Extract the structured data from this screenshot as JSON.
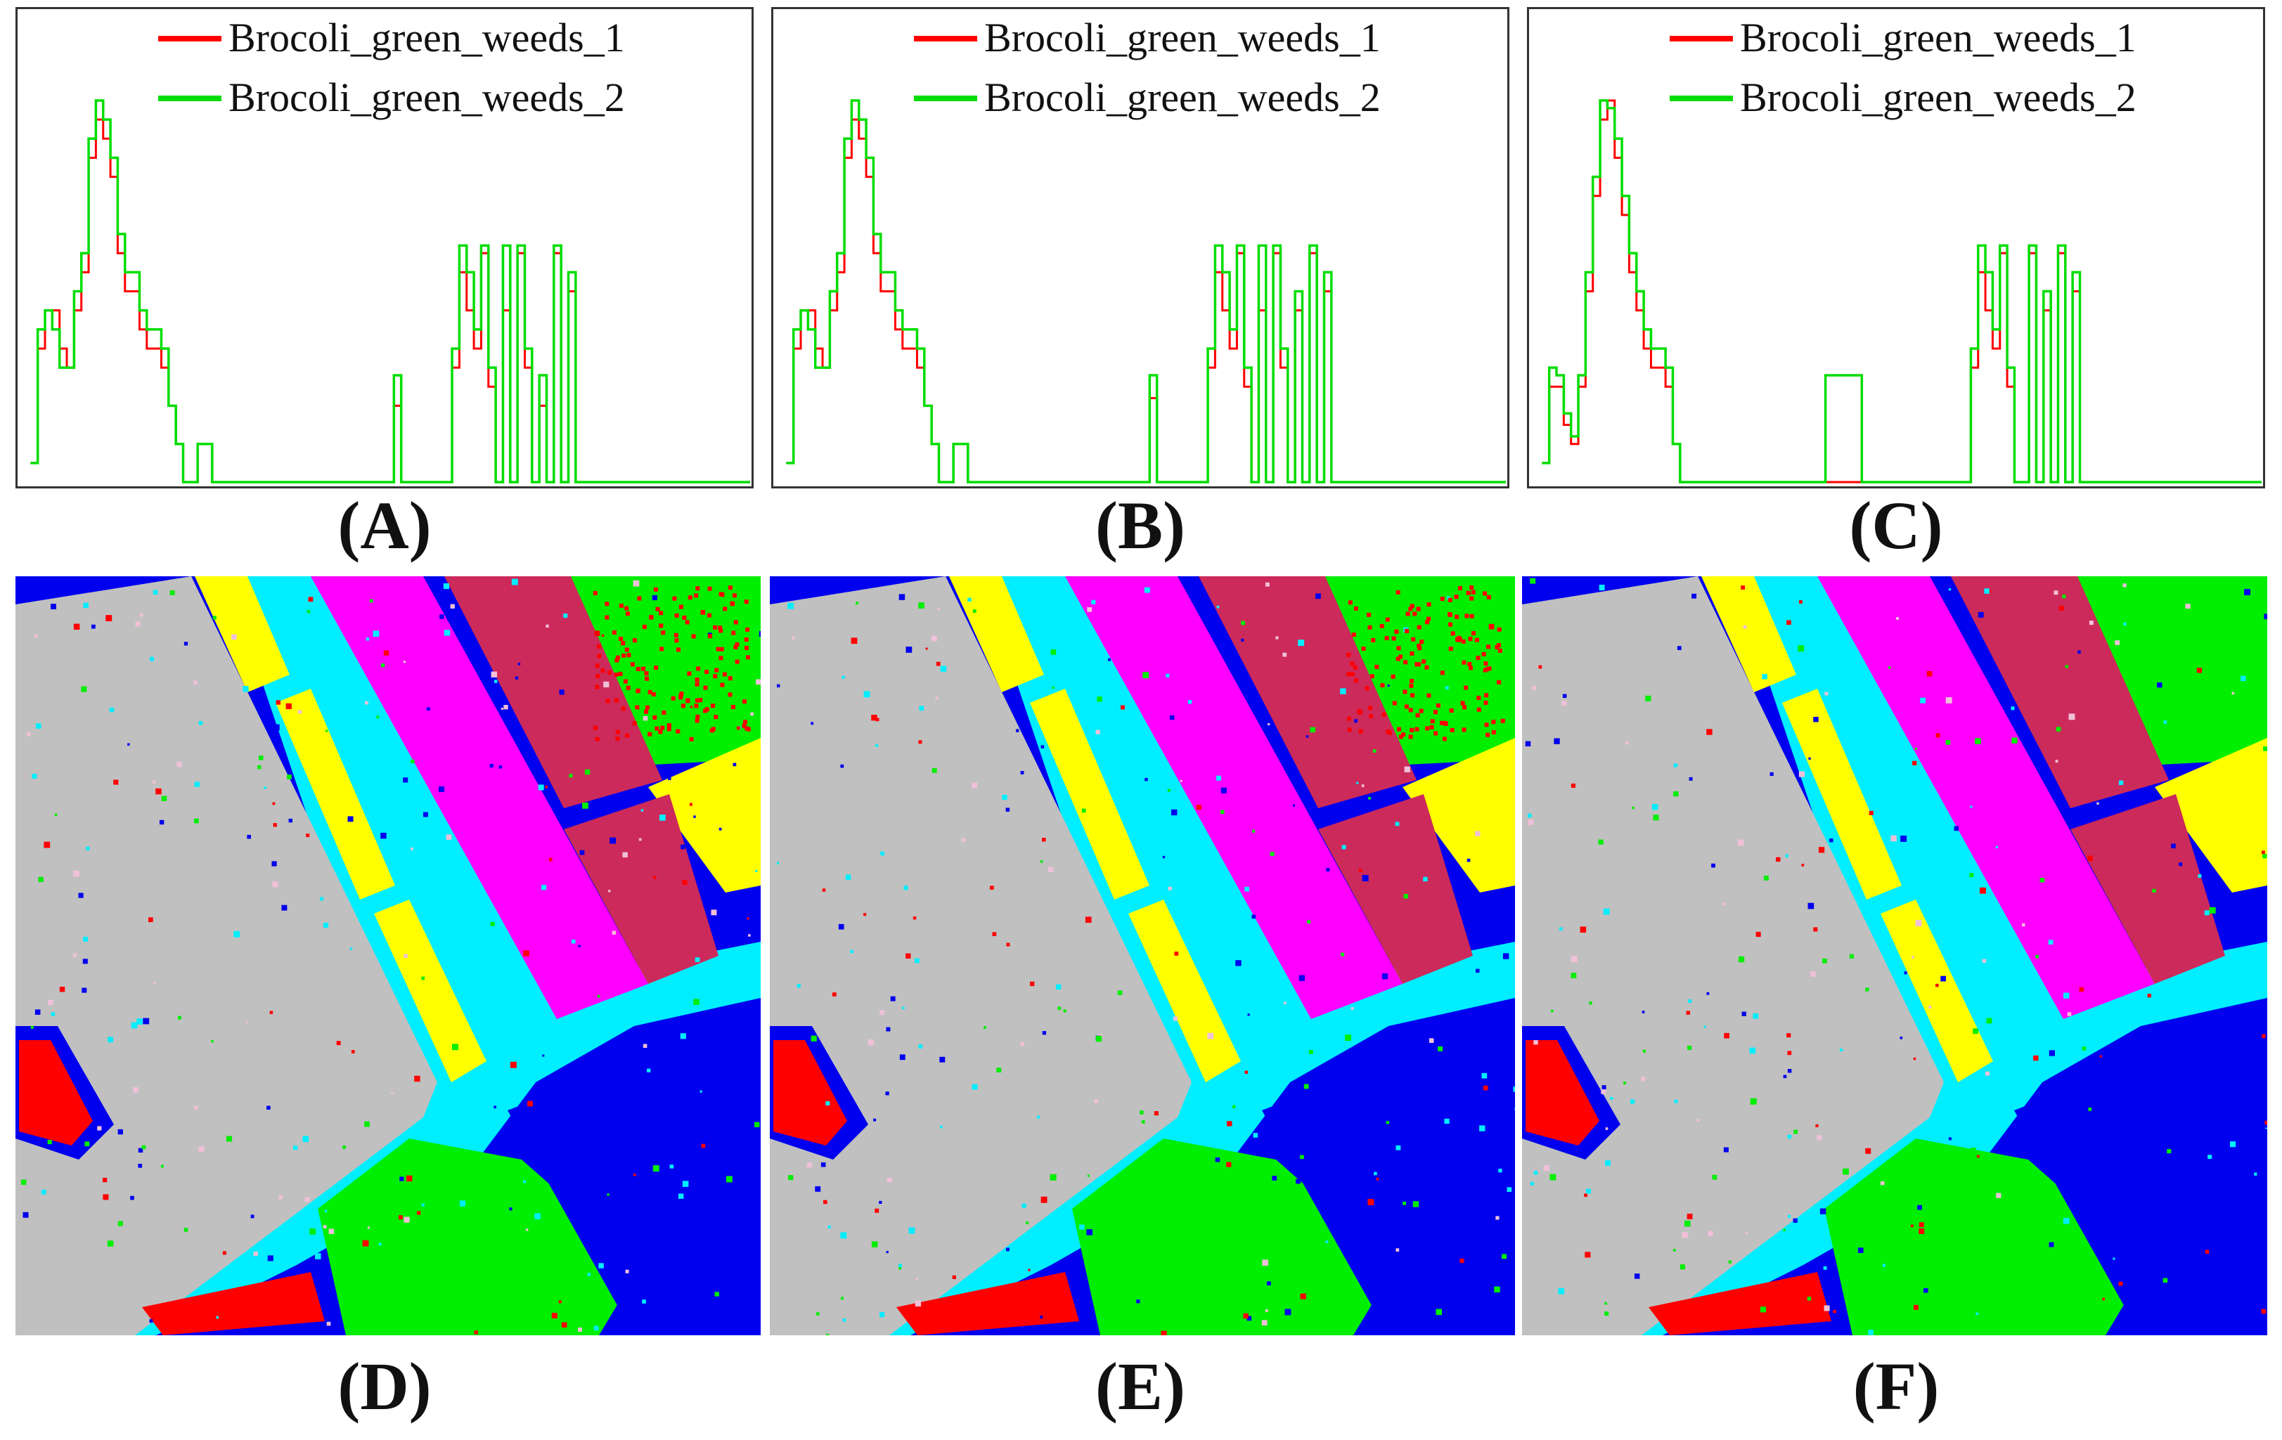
{
  "colors": {
    "series1": "#ff0000",
    "series2": "#00dd00",
    "gray": "#c0c0c0",
    "blue": "#0000ee",
    "cyan": "#00eeff",
    "yellow": "#ffff00",
    "magenta": "#ff00ff",
    "maroon": "#cc2a5a",
    "green": "#00ee00",
    "red": "#ff0000",
    "pink": "#f0c0d8"
  },
  "labels": {
    "A": "(A)",
    "B": "(B)",
    "C": "(C)",
    "D": "(D)",
    "E": "(E)",
    "F": "(F)"
  },
  "chart_data": [
    {
      "type": "line",
      "panel": "A",
      "legend": [
        "Brocoli_green_weeds_1",
        "Brocoli_green_weeds_2"
      ],
      "legend_position": "top-right",
      "x_range": [
        0,
        100
      ],
      "y_range": [
        0,
        100
      ],
      "series": [
        {
          "name": "Brocoli_green_weeds_1",
          "color": "#ff0000",
          "x": [
            1,
            2,
            3,
            4,
            5,
            6,
            7,
            8,
            9,
            10,
            11,
            12,
            13,
            14,
            15,
            16,
            17,
            18,
            19,
            20,
            21,
            22,
            23,
            24,
            25,
            26,
            27,
            28,
            29,
            30,
            35,
            40,
            45,
            50,
            51,
            52,
            55,
            58,
            59,
            60,
            61,
            62,
            63,
            64,
            65,
            66,
            67,
            68,
            69,
            70,
            71,
            72,
            73,
            74,
            75,
            76,
            77,
            78,
            79,
            80,
            85,
            90,
            95,
            100
          ],
          "y": [
            5,
            35,
            45,
            45,
            35,
            30,
            45,
            55,
            85,
            95,
            90,
            80,
            60,
            50,
            50,
            40,
            35,
            35,
            30,
            20,
            10,
            0,
            0,
            10,
            10,
            0,
            0,
            0,
            0,
            0,
            0,
            0,
            0,
            0,
            20,
            0,
            0,
            0,
            30,
            55,
            45,
            35,
            60,
            25,
            0,
            45,
            0,
            60,
            30,
            0,
            20,
            0,
            60,
            0,
            50,
            0,
            0,
            0,
            0,
            0,
            0,
            0,
            0,
            0
          ]
        },
        {
          "name": "Brocoli_green_weeds_2",
          "color": "#00dd00",
          "x": [
            1,
            2,
            3,
            4,
            5,
            6,
            7,
            8,
            9,
            10,
            11,
            12,
            13,
            14,
            15,
            16,
            17,
            18,
            19,
            20,
            21,
            22,
            23,
            24,
            25,
            26,
            27,
            28,
            29,
            30,
            35,
            40,
            45,
            50,
            51,
            52,
            55,
            58,
            59,
            60,
            61,
            62,
            63,
            64,
            65,
            66,
            67,
            68,
            69,
            70,
            71,
            72,
            73,
            74,
            75,
            76,
            77,
            78,
            79,
            80,
            85,
            90,
            95,
            100
          ],
          "y": [
            5,
            40,
            45,
            40,
            30,
            30,
            50,
            60,
            90,
            100,
            95,
            85,
            65,
            55,
            55,
            45,
            40,
            40,
            35,
            20,
            10,
            0,
            0,
            10,
            10,
            0,
            0,
            0,
            0,
            0,
            0,
            0,
            0,
            0,
            28,
            0,
            0,
            0,
            35,
            62,
            55,
            40,
            62,
            30,
            0,
            62,
            0,
            62,
            35,
            0,
            28,
            0,
            62,
            0,
            55,
            0,
            0,
            0,
            0,
            0,
            0,
            0,
            0,
            0
          ]
        }
      ]
    },
    {
      "type": "line",
      "panel": "B",
      "legend": [
        "Brocoli_green_weeds_1",
        "Brocoli_green_weeds_2"
      ],
      "legend_position": "top-right",
      "x_range": [
        0,
        100
      ],
      "y_range": [
        0,
        100
      ],
      "series": [
        {
          "name": "Brocoli_green_weeds_1",
          "color": "#ff0000",
          "x": [
            1,
            2,
            3,
            4,
            5,
            6,
            7,
            8,
            9,
            10,
            11,
            12,
            13,
            14,
            15,
            16,
            17,
            18,
            19,
            20,
            21,
            22,
            23,
            24,
            25,
            26,
            27,
            28,
            29,
            30,
            35,
            40,
            45,
            50,
            51,
            52,
            55,
            58,
            59,
            60,
            61,
            62,
            63,
            64,
            65,
            66,
            67,
            68,
            69,
            70,
            71,
            72,
            73,
            74,
            75,
            76,
            77,
            78,
            79,
            80,
            85,
            90,
            95,
            100
          ],
          "y": [
            5,
            35,
            45,
            45,
            35,
            30,
            45,
            55,
            85,
            95,
            90,
            80,
            60,
            50,
            50,
            40,
            35,
            35,
            30,
            20,
            10,
            0,
            0,
            10,
            10,
            0,
            0,
            0,
            0,
            0,
            0,
            0,
            0,
            0,
            22,
            0,
            0,
            0,
            30,
            55,
            45,
            35,
            60,
            25,
            0,
            45,
            0,
            60,
            30,
            0,
            45,
            0,
            60,
            0,
            50,
            0,
            0,
            0,
            0,
            0,
            0,
            0,
            0,
            0
          ]
        },
        {
          "name": "Brocoli_green_weeds_2",
          "color": "#00dd00",
          "x": [
            1,
            2,
            3,
            4,
            5,
            6,
            7,
            8,
            9,
            10,
            11,
            12,
            13,
            14,
            15,
            16,
            17,
            18,
            19,
            20,
            21,
            22,
            23,
            24,
            25,
            26,
            27,
            28,
            29,
            30,
            35,
            40,
            45,
            50,
            51,
            52,
            55,
            58,
            59,
            60,
            61,
            62,
            63,
            64,
            65,
            66,
            67,
            68,
            69,
            70,
            71,
            72,
            73,
            74,
            75,
            76,
            77,
            78,
            79,
            80,
            85,
            90,
            95,
            100
          ],
          "y": [
            5,
            40,
            45,
            40,
            30,
            30,
            50,
            60,
            90,
            100,
            95,
            85,
            65,
            55,
            55,
            45,
            40,
            40,
            35,
            20,
            10,
            0,
            0,
            10,
            10,
            0,
            0,
            0,
            0,
            0,
            0,
            0,
            0,
            0,
            28,
            0,
            0,
            0,
            35,
            62,
            55,
            40,
            62,
            30,
            0,
            62,
            0,
            62,
            35,
            0,
            50,
            0,
            62,
            0,
            55,
            0,
            0,
            0,
            0,
            0,
            0,
            0,
            0,
            0
          ]
        }
      ]
    },
    {
      "type": "line",
      "panel": "C",
      "legend": [
        "Brocoli_green_weeds_1",
        "Brocoli_green_weeds_2"
      ],
      "legend_position": "top-right",
      "x_range": [
        0,
        100
      ],
      "y_range": [
        0,
        100
      ],
      "series": [
        {
          "name": "Brocoli_green_weeds_1",
          "color": "#ff0000",
          "x": [
            1,
            2,
            3,
            4,
            5,
            6,
            7,
            8,
            9,
            10,
            11,
            12,
            13,
            14,
            15,
            16,
            17,
            18,
            19,
            20,
            21,
            22,
            23,
            24,
            25,
            26,
            27,
            28,
            29,
            30,
            35,
            40,
            45,
            50,
            51,
            52,
            55,
            58,
            59,
            60,
            61,
            62,
            63,
            64,
            65,
            66,
            67,
            68,
            69,
            70,
            71,
            72,
            73,
            74,
            75,
            76,
            77,
            78,
            79,
            80,
            85,
            90,
            95,
            100
          ],
          "y": [
            5,
            25,
            25,
            15,
            10,
            25,
            50,
            75,
            95,
            100,
            85,
            70,
            55,
            45,
            35,
            30,
            30,
            25,
            10,
            0,
            0,
            0,
            0,
            0,
            0,
            0,
            0,
            0,
            0,
            0,
            0,
            0,
            0,
            0,
            0,
            0,
            0,
            0,
            0,
            30,
            55,
            45,
            35,
            60,
            25,
            0,
            0,
            60,
            0,
            45,
            0,
            60,
            0,
            50,
            0,
            0,
            0,
            0,
            0,
            0,
            0,
            0,
            0,
            0
          ]
        },
        {
          "name": "Brocoli_green_weeds_2",
          "color": "#00dd00",
          "x": [
            1,
            2,
            3,
            4,
            5,
            6,
            7,
            8,
            9,
            10,
            11,
            12,
            13,
            14,
            15,
            16,
            17,
            18,
            19,
            20,
            21,
            22,
            23,
            24,
            25,
            26,
            27,
            28,
            29,
            30,
            35,
            40,
            45,
            50,
            51,
            52,
            55,
            58,
            59,
            60,
            61,
            62,
            63,
            64,
            65,
            66,
            67,
            68,
            69,
            70,
            71,
            72,
            73,
            74,
            75,
            76,
            77,
            78,
            79,
            80,
            85,
            90,
            95,
            100
          ],
          "y": [
            5,
            30,
            28,
            18,
            12,
            28,
            55,
            80,
            100,
            98,
            90,
            75,
            60,
            50,
            40,
            35,
            35,
            30,
            10,
            0,
            0,
            0,
            0,
            0,
            0,
            0,
            0,
            0,
            0,
            0,
            0,
            28,
            0,
            0,
            0,
            0,
            0,
            0,
            0,
            35,
            62,
            55,
            40,
            62,
            30,
            0,
            0,
            62,
            0,
            50,
            0,
            62,
            0,
            55,
            0,
            0,
            0,
            0,
            0,
            0,
            0,
            0,
            0,
            0
          ]
        }
      ]
    }
  ]
}
